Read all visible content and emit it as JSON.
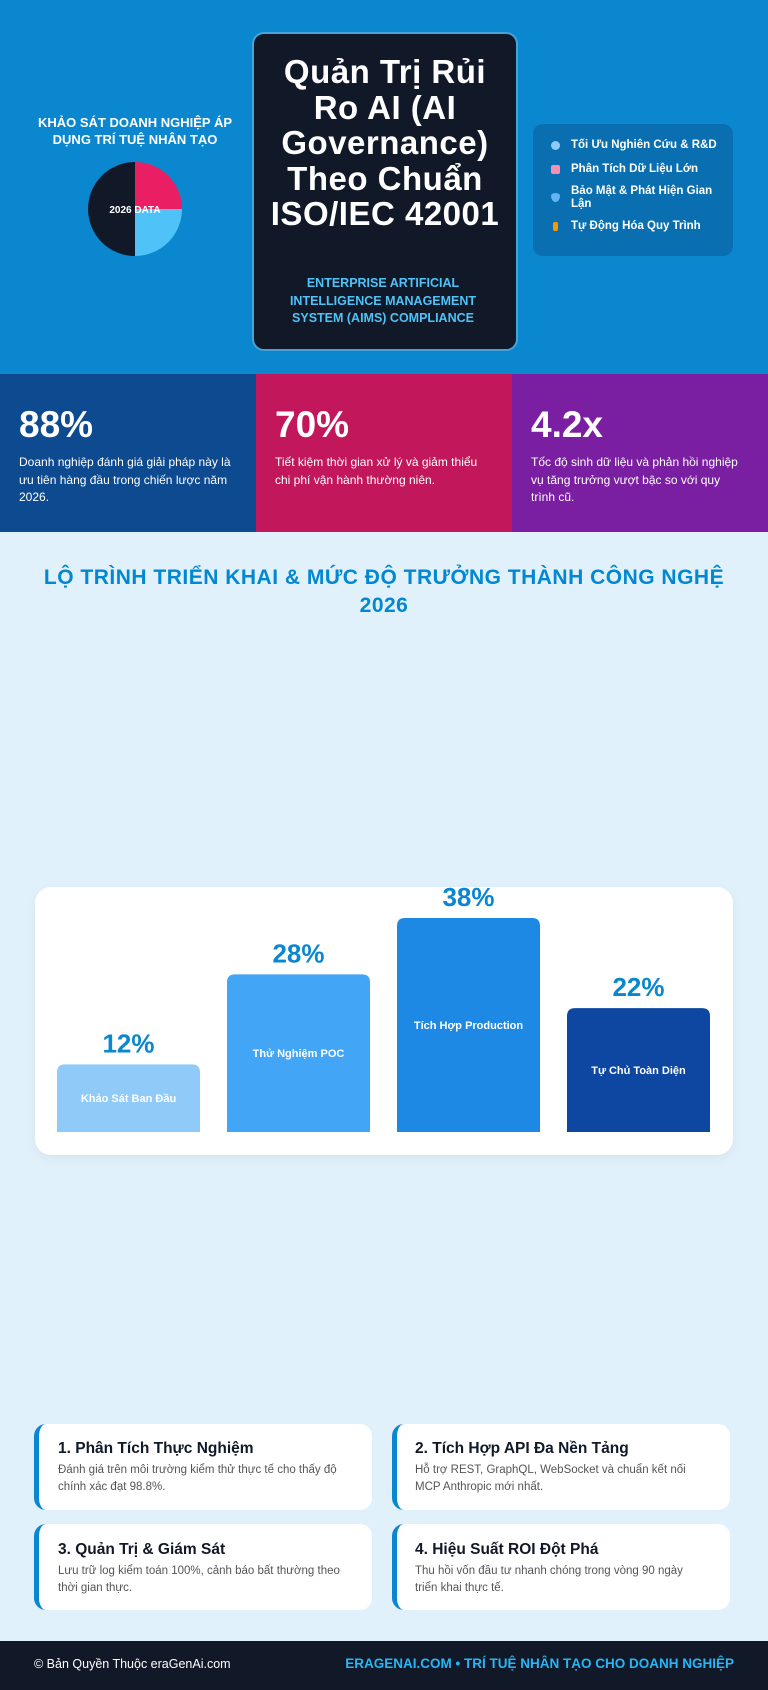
{
  "hero": {
    "title": "Quản Trị Rủi Ro AI (AI Governance) Theo Chuẩn ISO/IEC 42001",
    "subtitle": "ENTERPRISE ARTIFICIAL INTELLIGENCE MANAGEMENT SYSTEM (AIMS) COMPLIANCE",
    "features": [
      "Tối Ưu Nghiên Cứu & R&D",
      "Phân Tích Dữ Liệu Lớn",
      "Bảo Mật & Phát Hiện Gian Lận",
      "Tự Động Hóa Quy Trình"
    ]
  },
  "stats": [
    {
      "value": "88%",
      "text": "Doanh nghiệp đánh giá giải pháp này là ưu tiên hàng đầu trong chiến lược năm 2026."
    },
    {
      "value": "70%",
      "text": "Tiết kiệm thời gian xử lý và giảm thiểu chi phí vận hành thường niên."
    },
    {
      "value": "4.2x",
      "text": "Tốc độ sinh dữ liệu và phản hồi nghiệp vụ tăng trưởng vượt bậc so với quy trình cũ."
    }
  ],
  "chart_data": [
    {
      "type": "pie",
      "title": "KHẢO SÁT DOANH NGHIỆP ÁP DỤNG TRÍ TUỆ NHÂN TẠO",
      "label": "2026 DATA",
      "values": [
        25,
        25,
        50
      ],
      "colors": [
        "#e91e63",
        "#4fc3f7",
        "#111827"
      ]
    },
    {
      "type": "bar",
      "title": "LỘ TRÌNH TRIỂN KHAI & MỨC ĐỘ TRƯỞNG THÀNH CÔNG NGHỆ 2026",
      "categories": [
        "Khảo Sát Ban Đầu",
        "Thử Nghiệm POC",
        "Tích Hợp Production",
        "Tự Chủ Toàn Diện"
      ],
      "values": [
        12,
        28,
        38,
        22
      ],
      "value_labels": [
        "12%",
        "28%",
        "38%",
        "22%"
      ],
      "colors": [
        "#90caf9",
        "#42a5f5",
        "#1e88e5",
        "#0d47a1"
      ]
    }
  ],
  "cards": [
    {
      "title": "1. Phân Tích Thực Nghiệm",
      "text": "Đánh giá trên môi trường kiểm thử thực tế cho thấy độ chính xác đạt 98.8%."
    },
    {
      "title": "2. Tích Hợp API Đa Nền Tảng",
      "text": "Hỗ trợ REST, GraphQL, WebSocket và chuẩn kết nối MCP Anthropic mới nhất."
    },
    {
      "title": "3. Quản Trị & Giám Sát",
      "text": "Lưu trữ log kiểm toán 100%, cảnh báo bất thường theo thời gian thực."
    },
    {
      "title": "4. Hiệu Suất ROI Đột Phá",
      "text": "Thu hồi vốn đầu tư nhanh chóng trong vòng 90 ngày triển khai thực tế."
    }
  ],
  "footer": {
    "copyright": "© Bản Quyền Thuộc eraGenAi.com",
    "brand": "ERAGENAI.COM • TRÍ TUỆ NHÂN TẠO CHO DOANH NGHIỆP"
  }
}
